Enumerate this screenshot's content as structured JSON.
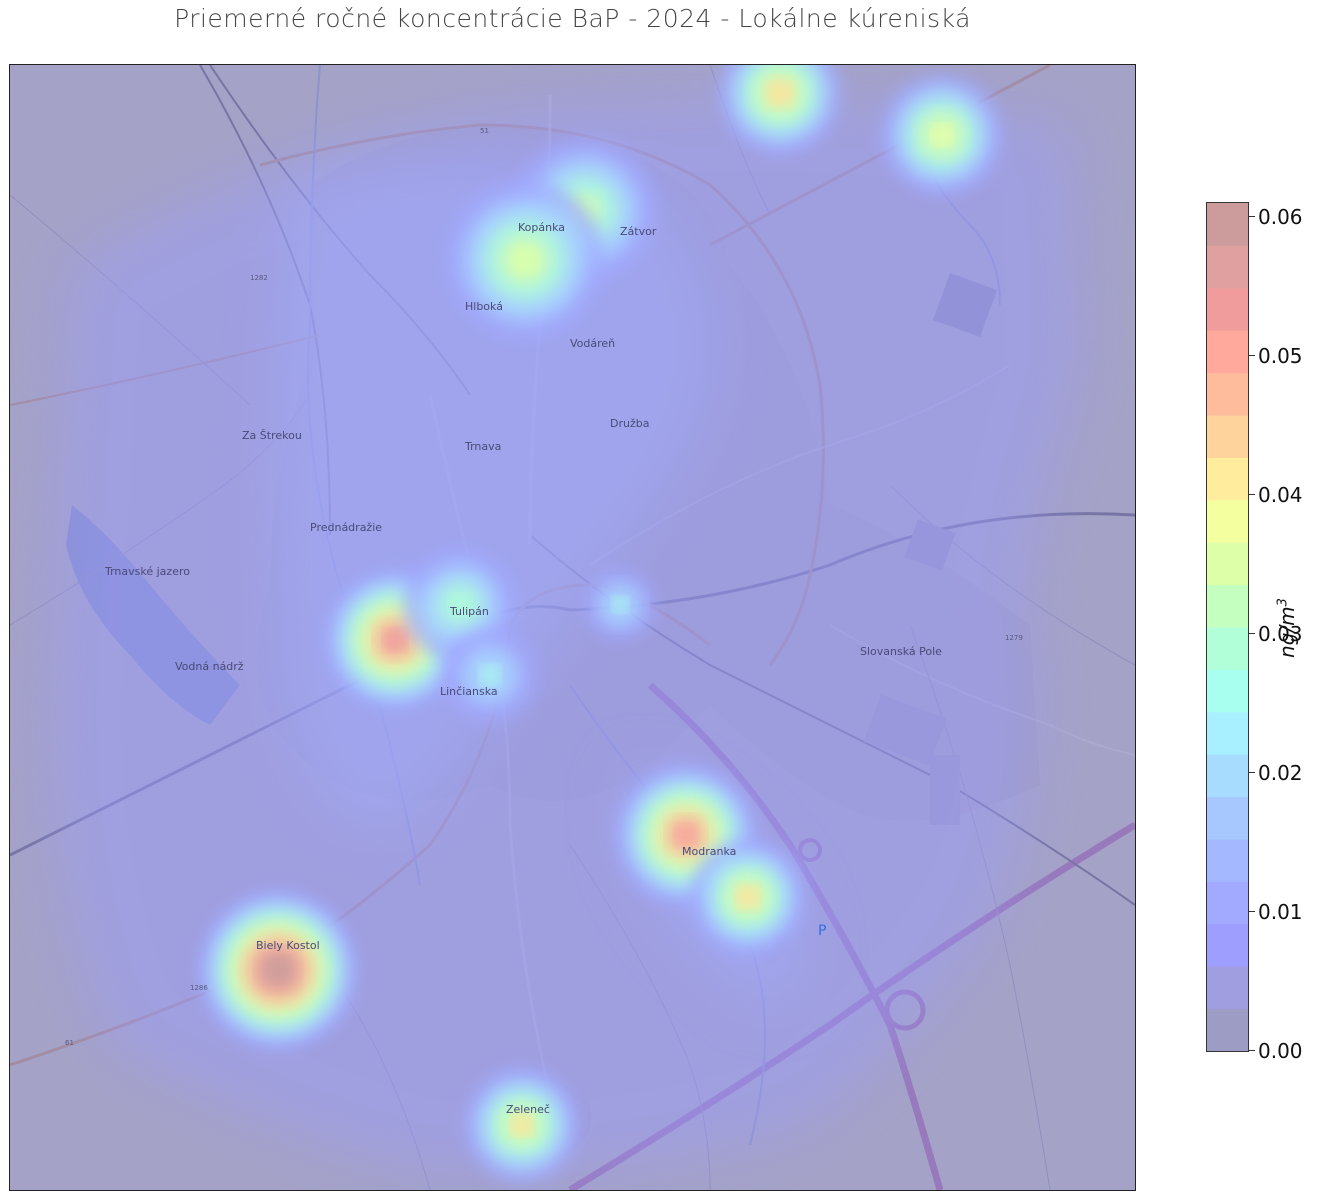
{
  "title": "Priemerné ročné koncentrácie BaP - 2024 - Lokálne kúreniská",
  "colorbar": {
    "label_text": "ng/m",
    "label_exp": "3",
    "min": 0.0,
    "max": 0.061,
    "ticks": [
      {
        "value": 0.0,
        "label": "0.00"
      },
      {
        "value": 0.01,
        "label": "0.01"
      },
      {
        "value": 0.02,
        "label": "0.02"
      },
      {
        "value": 0.03,
        "label": "0.03"
      },
      {
        "value": 0.04,
        "label": "0.04"
      },
      {
        "value": 0.05,
        "label": "0.05"
      },
      {
        "value": 0.06,
        "label": "0.06"
      }
    ],
    "colors": [
      "#9c9cc4",
      "#a09ee0",
      "#9e9eff",
      "#a2aaff",
      "#a4b8ff",
      "#a6c8ff",
      "#a8dcff",
      "#a8f0ff",
      "#a8fff0",
      "#b0ffd8",
      "#c4ffc0",
      "#dcffa8",
      "#f4ffa0",
      "#ffec9c",
      "#ffd49c",
      "#ffbc9c",
      "#ffa89c",
      "#f09c9c",
      "#e0a0a0",
      "#cc9c9c"
    ]
  },
  "map_labels": [
    {
      "id": "trnava",
      "text": "Trnava"
    },
    {
      "id": "kopanka",
      "text": "Kopánka"
    },
    {
      "id": "zatvor",
      "text": "Zátvor"
    },
    {
      "id": "tulipan",
      "text": "Tulipán"
    },
    {
      "id": "druzba",
      "text": "Družba"
    },
    {
      "id": "vodarna",
      "text": "Vodáreň"
    },
    {
      "id": "prednadrazie",
      "text": "Prednádražie"
    },
    {
      "id": "zastrekov",
      "text": "Za Štrekou"
    },
    {
      "id": "hlboka",
      "text": "Hlboká"
    },
    {
      "id": "linc",
      "text": "Linčianska"
    },
    {
      "id": "modranka",
      "text": "Modranka"
    },
    {
      "id": "zeleneč",
      "text": "Zeleneč"
    },
    {
      "id": "biely-kostol",
      "text": "Biely Kostol"
    },
    {
      "id": "slovenska",
      "text": "Slovanská Pole"
    },
    {
      "id": "park",
      "text": "P"
    },
    {
      "id": "trnavske-jazero",
      "text": "Trnavské jazero"
    },
    {
      "id": "vodna-nadrz",
      "text": "Vodná nádrž"
    },
    {
      "id": "r51",
      "text": "51"
    },
    {
      "id": "r61",
      "text": "61"
    },
    {
      "id": "r1279",
      "text": "1279"
    },
    {
      "id": "r1286",
      "text": "1286"
    },
    {
      "id": "r1282",
      "text": "1282"
    }
  ],
  "concentration_hotspots": [
    {
      "id": "kopanka-north",
      "level": 0.033
    },
    {
      "id": "kopanka-south",
      "level": 0.036
    },
    {
      "id": "north-village-1",
      "level": 0.042
    },
    {
      "id": "north-village-2",
      "level": 0.039
    },
    {
      "id": "tulipan-west",
      "level": 0.052
    },
    {
      "id": "tulipan-north",
      "level": 0.03
    },
    {
      "id": "linc",
      "level": 0.024
    },
    {
      "id": "modranka-1",
      "level": 0.051
    },
    {
      "id": "modranka-2",
      "level": 0.041
    },
    {
      "id": "biely-kostol",
      "level": 0.06
    },
    {
      "id": "zeleneč",
      "level": 0.04
    },
    {
      "id": "center-east",
      "level": 0.024
    }
  ]
}
